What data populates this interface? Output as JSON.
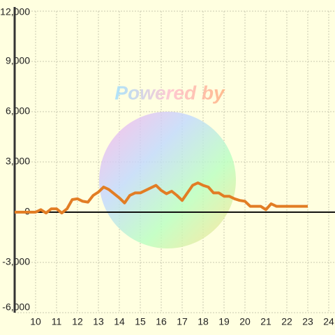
{
  "chart_data": {
    "type": "line",
    "watermark": "Powered by",
    "x": [
      9,
      9.5,
      10,
      10.25,
      10.5,
      10.75,
      11,
      11.25,
      11.5,
      11.75,
      12,
      12.25,
      12.5,
      12.75,
      13,
      13.25,
      13.5,
      13.75,
      14,
      14.25,
      14.5,
      14.75,
      15,
      15.25,
      15.5,
      15.75,
      16,
      16.25,
      16.5,
      16.75,
      17,
      17.25,
      17.5,
      17.75,
      18,
      18.25,
      18.5,
      18.75,
      19,
      19.25,
      19.5,
      19.75,
      20,
      20.25,
      20.5,
      20.75,
      21,
      21.25,
      21.5,
      21.75,
      22,
      22.5,
      23
    ],
    "series": [
      {
        "color": "#e27d24",
        "values": [
          0,
          0,
          0,
          150,
          -50,
          200,
          200,
          -50,
          200,
          750,
          800,
          650,
          600,
          1000,
          1200,
          1500,
          1350,
          1100,
          850,
          550,
          1000,
          1150,
          1150,
          1300,
          1450,
          1600,
          1300,
          1100,
          1250,
          1000,
          700,
          1150,
          1600,
          1750,
          1600,
          1500,
          1150,
          1150,
          950,
          950,
          800,
          700,
          650,
          350,
          350,
          350,
          150,
          500,
          350,
          350,
          350,
          350,
          350
        ]
      }
    ],
    "xlim": [
      9,
      24.3
    ],
    "xticks": [
      10,
      11,
      12,
      13,
      14,
      15,
      16,
      17,
      18,
      19,
      20,
      21,
      22,
      23,
      24
    ],
    "ylim": [
      -6000,
      12000
    ],
    "yticks": [
      {
        "value": -6000,
        "label": "-6,000"
      },
      {
        "value": -3000,
        "label": "-3,000"
      },
      0,
      {
        "value": 3000,
        "label": "3,000"
      },
      {
        "value": 6000,
        "label": "6,000"
      },
      {
        "value": 9000,
        "label": "9,000"
      },
      {
        "value": 12000,
        "label": "12,000"
      }
    ],
    "grid": true
  }
}
